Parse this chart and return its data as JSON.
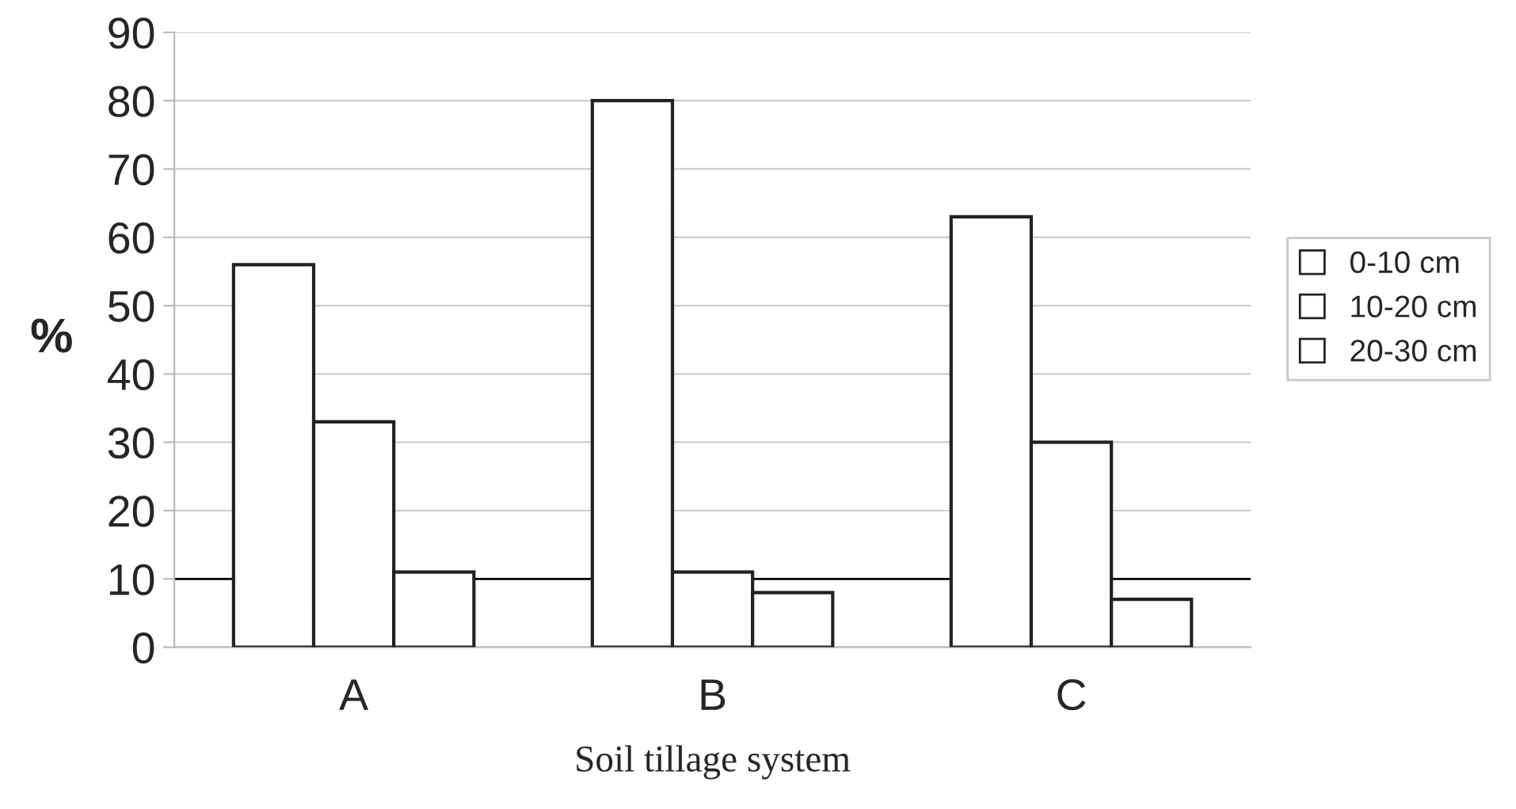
{
  "chart_data": {
    "type": "bar",
    "xlabel": "Soil tillage system",
    "ylabel": "%",
    "categories": [
      "A",
      "B",
      "C"
    ],
    "series": [
      {
        "name": "0-10 cm",
        "color": "#ffffff",
        "values": [
          56,
          80,
          63
        ]
      },
      {
        "name": "10-20 cm",
        "color": "#ffffff",
        "values": [
          33,
          11,
          30
        ]
      },
      {
        "name": "20-30 cm",
        "color": "#ffffff",
        "values": [
          11,
          8,
          7
        ]
      }
    ],
    "ylim": [
      0,
      90
    ],
    "yticks": [
      0,
      10,
      20,
      30,
      40,
      50,
      60,
      70,
      80,
      90
    ],
    "ref_lines": [
      {
        "axis": "y",
        "value": 10,
        "color": "#000000"
      }
    ],
    "grid": "y",
    "legend": "right"
  }
}
